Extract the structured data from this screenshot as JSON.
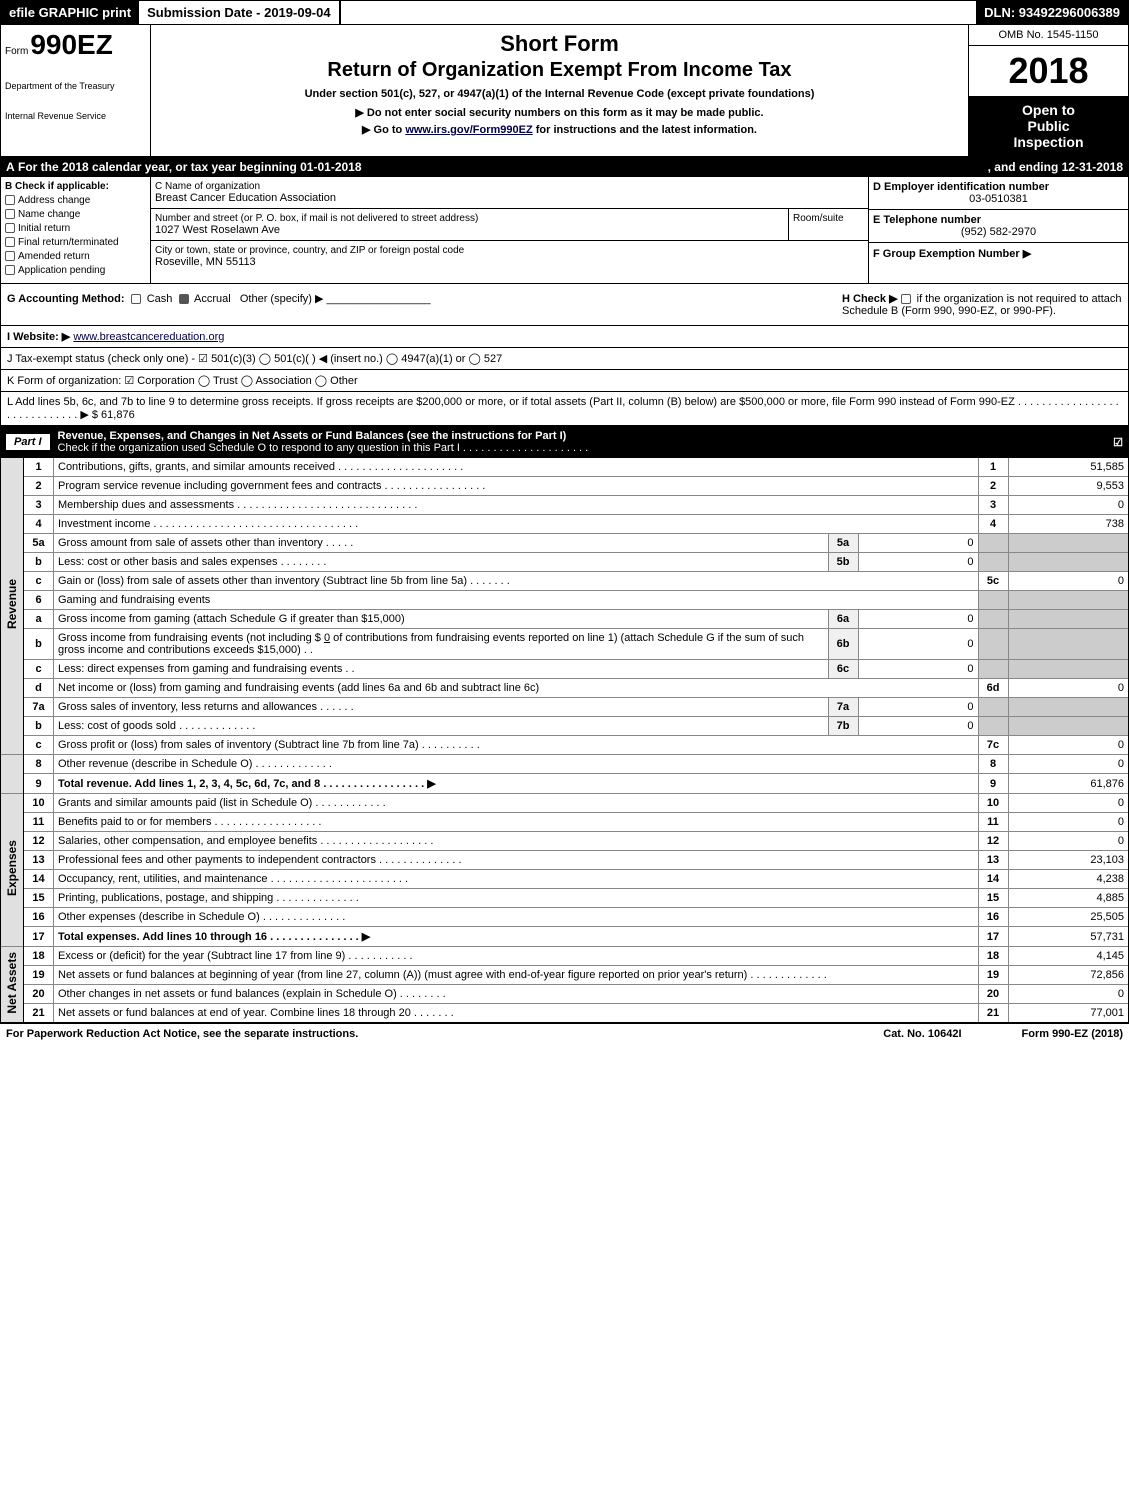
{
  "top": {
    "efile": "efile GRAPHIC print",
    "submission_label": "Submission Date - 2019-09-04",
    "dln": "DLN: 93492296006389"
  },
  "header": {
    "form_word": "Form",
    "form_number": "990EZ",
    "dept1": "Department of the Treasury",
    "dept2": "Internal Revenue Service",
    "title1": "Short Form",
    "title2": "Return of Organization Exempt From Income Tax",
    "sub1": "Under section 501(c), 527, or 4947(a)(1) of the Internal Revenue Code (except private foundations)",
    "sub2": "▶ Do not enter social security numbers on this form as it may be made public.",
    "sub3_prefix": "▶ Go to ",
    "sub3_link": "www.irs.gov/Form990EZ",
    "sub3_suffix": " for instructions and the latest information.",
    "omb": "OMB No. 1545-1150",
    "year": "2018",
    "insp1": "Open to",
    "insp2": "Public",
    "insp3": "Inspection"
  },
  "row_a": {
    "label": "A",
    "text": "For the 2018 calendar year, or tax year beginning 01-01-2018",
    "end": ", and ending 12-31-2018"
  },
  "col_b": {
    "hdr_letter": "B",
    "hdr": "Check if applicable:",
    "items": [
      "Address change",
      "Name change",
      "Initial return",
      "Final return/terminated",
      "Amended return",
      "Application pending"
    ]
  },
  "col_c": {
    "name_lbl": "C Name of organization",
    "name": "Breast Cancer Education Association",
    "addr_lbl": "Number and street (or P. O. box, if mail is not delivered to street address)",
    "room_lbl": "Room/suite",
    "addr": "1027 West Roselawn Ave",
    "city_lbl": "City or town, state or province, country, and ZIP or foreign postal code",
    "city": "Roseville, MN  55113"
  },
  "col_d": {
    "ein_lbl": "D Employer identification number",
    "ein": "03-0510381",
    "tel_lbl": "E Telephone number",
    "tel": "(952) 582-2970",
    "grp_lbl": "F Group Exemption Number   ▶"
  },
  "row_g": {
    "label": "G Accounting Method:",
    "cash": "Cash",
    "accrual": "Accrual",
    "other": "Other (specify) ▶",
    "h_text": "H  Check ▶",
    "h_rest": "if the organization is not required to attach Schedule B (Form 990, 990-EZ, or 990-PF)."
  },
  "row_i": {
    "label": "I Website: ▶",
    "url": "www.breastcancereduation.org"
  },
  "row_j": {
    "text": "J Tax-exempt status (check only one) -  ☑ 501(c)(3)  ◯ 501(c)(  ) ◀ (insert no.)  ◯ 4947(a)(1) or  ◯ 527"
  },
  "row_k": {
    "text": "K Form of organization:   ☑ Corporation   ◯ Trust   ◯ Association   ◯ Other"
  },
  "row_l": {
    "text": "L Add lines 5b, 6c, and 7b to line 9 to determine gross receipts. If gross receipts are $200,000 or more, or if total assets (Part II, column (B) below) are $500,000 or more, file Form 990 instead of Form 990-EZ . . . . . . . . . . . . . . . . . . . . . . . . . . . . . ▶ $ 61,876"
  },
  "part1": {
    "part_label": "Part I",
    "title": "Revenue, Expenses, and Changes in Net Assets or Fund Balances (see the instructions for Part I)",
    "check_text": "Check if the organization used Schedule O to respond to any question in this Part I . . . . . . . . . . . . . . . . . . . . .",
    "bullet": "☑"
  },
  "side_labels": {
    "revenue": "Revenue",
    "expenses": "Expenses",
    "net_assets": "Net Assets"
  },
  "lines": {
    "l1": {
      "num": "1",
      "desc": "Contributions, gifts, grants, and similar amounts received . . . . . . . . . . . . . . . . . . . . .",
      "box": "1",
      "val": "51,585"
    },
    "l2": {
      "num": "2",
      "desc": "Program service revenue including government fees and contracts . . . . . . . . . . . . . . . . .",
      "box": "2",
      "val": "9,553"
    },
    "l3": {
      "num": "3",
      "desc": "Membership dues and assessments . . . . . . . . . . . . . . . . . . . . . . . . . . . . . .",
      "box": "3",
      "val": "0"
    },
    "l4": {
      "num": "4",
      "desc": "Investment income . . . . . . . . . . . . . . . . . . . . . . . . . . . . . . . . . .",
      "box": "4",
      "val": "738"
    },
    "l5a": {
      "num": "5a",
      "desc": "Gross amount from sale of assets other than inventory . . . . .",
      "ibox": "5a",
      "ival": "0"
    },
    "l5b": {
      "num": "b",
      "desc": "Less: cost or other basis and sales expenses . . . . . . . .",
      "ibox": "5b",
      "ival": "0"
    },
    "l5c": {
      "num": "c",
      "desc": "Gain or (loss) from sale of assets other than inventory (Subtract line 5b from line 5a) . . . . . . .",
      "box": "5c",
      "val": "0"
    },
    "l6": {
      "num": "6",
      "desc": "Gaming and fundraising events"
    },
    "l6a": {
      "num": "a",
      "desc": "Gross income from gaming (attach Schedule G if greater than $15,000)",
      "ibox": "6a",
      "ival": "0"
    },
    "l6b": {
      "num": "b",
      "desc1": "Gross income from fundraising events (not including $",
      "amt": "0",
      "desc2": "of contributions from fundraising events reported on line 1) (attach Schedule G if the sum of such gross income and contributions exceeds $15,000)   .  .",
      "ibox": "6b",
      "ival": "0"
    },
    "l6c": {
      "num": "c",
      "desc": "Less: direct expenses from gaming and fundraising events     .   .",
      "ibox": "6c",
      "ival": "0"
    },
    "l6d": {
      "num": "d",
      "desc": "Net income or (loss) from gaming and fundraising events (add lines 6a and 6b and subtract line 6c)",
      "box": "6d",
      "val": "0"
    },
    "l7a": {
      "num": "7a",
      "desc": "Gross sales of inventory, less returns and allowances . . . . . .",
      "ibox": "7a",
      "ival": "0"
    },
    "l7b": {
      "num": "b",
      "desc": "Less: cost of goods sold        .   .   .   .   .   .   .   .   .   .   .   .   .",
      "ibox": "7b",
      "ival": "0"
    },
    "l7c": {
      "num": "c",
      "desc": "Gross profit or (loss) from sales of inventory (Subtract line 7b from line 7a) . . . . . . . . . .",
      "box": "7c",
      "val": "0"
    },
    "l8": {
      "num": "8",
      "desc": "Other revenue (describe in Schedule O)            .   .   .   .   .   .   .   .   .   .   .   .   .",
      "box": "8",
      "val": "0"
    },
    "l9": {
      "num": "9",
      "desc": "Total revenue. Add lines 1, 2, 3, 4, 5c, 6d, 7c, and 8 . . . . . . . . . . . . . . . . .    ▶",
      "box": "9",
      "val": "61,876"
    },
    "l10": {
      "num": "10",
      "desc": "Grants and similar amounts paid (list in Schedule O)         .   .   .   .   .   .   .   .   .   .   .   .",
      "box": "10",
      "val": "0"
    },
    "l11": {
      "num": "11",
      "desc": "Benefits paid to or for members          .   .   .   .   .   .   .   .   .   .   .   .   .   .   .   .   .   .",
      "box": "11",
      "val": "0"
    },
    "l12": {
      "num": "12",
      "desc": "Salaries, other compensation, and employee benefits . . . . . . . . . . . . . . . . . . .",
      "box": "12",
      "val": "0"
    },
    "l13": {
      "num": "13",
      "desc": "Professional fees and other payments to independent contractors . . . . . . . . . . . . . .",
      "box": "13",
      "val": "23,103"
    },
    "l14": {
      "num": "14",
      "desc": "Occupancy, rent, utilities, and maintenance . . . . . . . . . . . . . . . . . . . . . . .",
      "box": "14",
      "val": "4,238"
    },
    "l15": {
      "num": "15",
      "desc": "Printing, publications, postage, and shipping           .   .   .   .   .   .   .   .   .   .   .   .   .   .",
      "box": "15",
      "val": "4,885"
    },
    "l16": {
      "num": "16",
      "desc": "Other expenses (describe in Schedule O)           .   .   .   .   .   .   .   .   .   .   .   .   .   .",
      "box": "16",
      "val": "25,505"
    },
    "l17": {
      "num": "17",
      "desc": "Total expenses. Add lines 10 through 16        .   .   .   .   .   .   .   .   .   .   .   .   .   .   .   ▶",
      "box": "17",
      "val": "57,731"
    },
    "l18": {
      "num": "18",
      "desc": "Excess or (deficit) for the year (Subtract line 17 from line 9)        .   .   .   .   .   .   .   .   .   .   .",
      "box": "18",
      "val": "4,145"
    },
    "l19": {
      "num": "19",
      "desc": "Net assets or fund balances at beginning of year (from line 27, column (A)) (must agree with end-of-year figure reported on prior year's return)           .   .   .   .   .   .   .   .   .   .   .   .   .",
      "box": "19",
      "val": "72,856"
    },
    "l20": {
      "num": "20",
      "desc": "Other changes in net assets or fund balances (explain in Schedule O)      .   .   .   .   .   .   .   .",
      "box": "20",
      "val": "0"
    },
    "l21": {
      "num": "21",
      "desc": "Net assets or fund balances at end of year. Combine lines 18 through 20         .   .   .   .   .   .   .",
      "box": "21",
      "val": "77,001"
    }
  },
  "footer": {
    "left": "For Paperwork Reduction Act Notice, see the separate instructions.",
    "mid": "Cat. No. 10642I",
    "right": "Form 990-EZ (2018)"
  }
}
